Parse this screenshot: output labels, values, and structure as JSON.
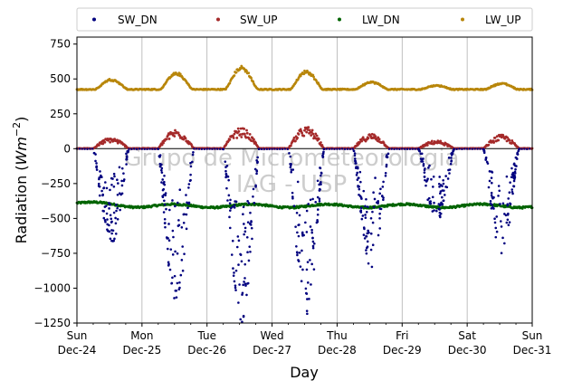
{
  "chart_data": {
    "type": "scatter",
    "xlabel": "Day",
    "ylabel": "Radiation (Wm⁻²)",
    "ylabel_main": "Radiation (",
    "ylabel_unit": "Wm",
    "ylabel_exp": "−2",
    "ylabel_close": ")",
    "ylim": [
      -1250,
      800
    ],
    "yticks": [
      -1250,
      -1000,
      -750,
      -500,
      -250,
      0,
      250,
      500,
      750
    ],
    "ytick_labels": [
      "−1250",
      "−1000",
      "−750",
      "−500",
      "−250",
      "0",
      "250",
      "500",
      "750"
    ],
    "xlim": [
      "2017-12-24",
      "2017-12-31"
    ],
    "xticks": [
      {
        "day": "Sun",
        "date": "Dec-24"
      },
      {
        "day": "Mon",
        "date": "Dec-25"
      },
      {
        "day": "Tue",
        "date": "Dec-26"
      },
      {
        "day": "Wed",
        "date": "Dec-27"
      },
      {
        "day": "Thu",
        "date": "Dec-28"
      },
      {
        "day": "Fri",
        "date": "Dec-29"
      },
      {
        "day": "Sat",
        "date": "Dec-30"
      },
      {
        "day": "Sun",
        "date": "Dec-31"
      }
    ],
    "grid": "vertical",
    "legend_position": "top, outside, horizontal",
    "watermark": [
      "Grupo de Micrometeorologia",
      "IAG - USP"
    ],
    "series": [
      {
        "name": "SW_DN",
        "color": "#00007f",
        "daily_min": [
          -690,
          -1120,
          -1250,
          -1190,
          -860,
          -530,
          -750
        ]
      },
      {
        "name": "SW_UP",
        "color": "#a52a2a",
        "daily_max": [
          80,
          140,
          150,
          160,
          110,
          60,
          100
        ]
      },
      {
        "name": "LW_DN",
        "color": "#006400",
        "baseline": -410
      },
      {
        "name": "LW_UP",
        "color": "#b8860b",
        "baseline": 425,
        "daily_max": [
          500,
          545,
          590,
          560,
          480,
          455,
          470
        ]
      }
    ]
  }
}
